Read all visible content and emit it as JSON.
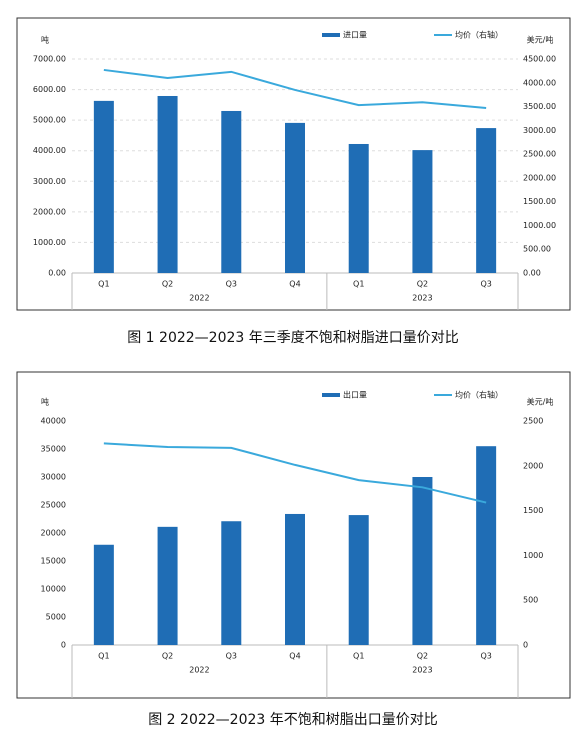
{
  "chart_data": [
    {
      "type": "bar",
      "caption": "图 1 2022—2023 年三季度不饱和树脂进口量价对比",
      "y_label": "吨",
      "y2_label": "美元/吨",
      "groups": [
        {
          "label": "2022",
          "categories": [
            "Q1",
            "Q2",
            "Q3",
            "Q4"
          ]
        },
        {
          "label": "2023",
          "categories": [
            "Q1",
            "Q2",
            "Q3"
          ]
        }
      ],
      "series": [
        {
          "name": "进口量",
          "type": "bar",
          "color": "#1f6db5",
          "values": [
            5630,
            5790,
            5300,
            4910,
            4220,
            4020,
            4740
          ]
        },
        {
          "name": "均价（右轴）",
          "type": "line",
          "axis": "y2",
          "color": "#3aa9dc",
          "values": [
            4270,
            4100,
            4230,
            3850,
            3530,
            3590,
            3470
          ]
        }
      ],
      "ylim": [
        0,
        7000
      ],
      "yticks": [
        {
          "value": 0,
          "label": "0.00"
        },
        {
          "value": 1000,
          "label": "1000.00"
        },
        {
          "value": 2000,
          "label": "2000.00"
        },
        {
          "value": 3000,
          "label": "3000.00"
        },
        {
          "value": 4000,
          "label": "4000.00"
        },
        {
          "value": 5000,
          "label": "5000.00"
        },
        {
          "value": 6000,
          "label": "6000.00"
        },
        {
          "value": 7000,
          "label": "7000.00"
        }
      ],
      "y2lim": [
        0,
        4500
      ],
      "y2ticks": [
        {
          "value": 0,
          "label": "0.00"
        },
        {
          "value": 500,
          "label": "500.00"
        },
        {
          "value": 1000,
          "label": "1000.00"
        },
        {
          "value": 1500,
          "label": "1500.00"
        },
        {
          "value": 2000,
          "label": "2000.00"
        },
        {
          "value": 2500,
          "label": "2500.00"
        },
        {
          "value": 3000,
          "label": "3000.00"
        },
        {
          "value": 3500,
          "label": "3500.00"
        },
        {
          "value": 4000,
          "label": "4000.00"
        },
        {
          "value": 4500,
          "label": "4500.00"
        }
      ],
      "grid": true
    },
    {
      "type": "bar",
      "caption": "图 2 2022—2023 年不饱和树脂出口量价对比",
      "y_label": "吨",
      "y2_label": "美元/吨",
      "groups": [
        {
          "label": "2022",
          "categories": [
            "Q1",
            "Q2",
            "Q3",
            "Q4"
          ]
        },
        {
          "label": "2023",
          "categories": [
            "Q1",
            "Q2",
            "Q3"
          ]
        }
      ],
      "series": [
        {
          "name": "出口量",
          "type": "bar",
          "color": "#1f6db5",
          "values": [
            17900,
            21100,
            22100,
            23400,
            23200,
            30000,
            35500
          ]
        },
        {
          "name": "均价（右轴）",
          "type": "line",
          "axis": "y2",
          "color": "#3aa9dc",
          "values": [
            2250,
            2210,
            2200,
            2010,
            1840,
            1760,
            1590
          ]
        }
      ],
      "ylim": [
        0,
        40000
      ],
      "yticks": [
        0,
        5000,
        10000,
        15000,
        20000,
        25000,
        30000,
        35000,
        40000
      ],
      "y2lim": [
        0,
        2500
      ],
      "y2ticks": [
        0,
        500,
        1000,
        1500,
        2000,
        2500
      ],
      "grid": false
    }
  ]
}
